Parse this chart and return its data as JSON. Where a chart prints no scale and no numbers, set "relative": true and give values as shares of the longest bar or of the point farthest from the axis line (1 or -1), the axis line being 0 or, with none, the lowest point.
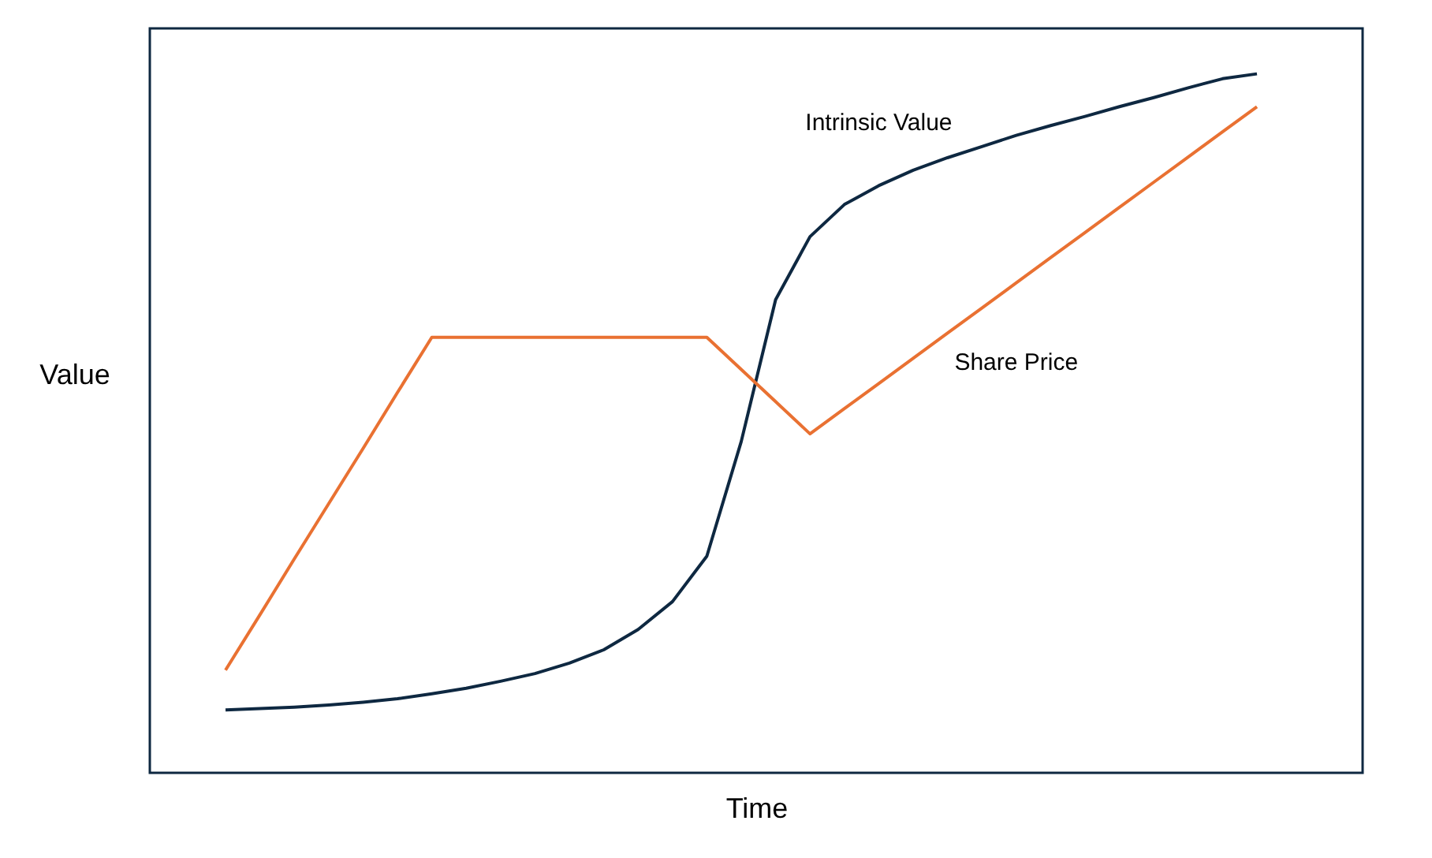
{
  "chart_data": {
    "type": "line",
    "xlabel": "Time",
    "ylabel": "Value",
    "relative": true,
    "grid": false,
    "categories": [
      null,
      null,
      null,
      null,
      null,
      null,
      null,
      null,
      null,
      null,
      null,
      null,
      null,
      null,
      null,
      null,
      null,
      null,
      null,
      null,
      null,
      null,
      null,
      null,
      null,
      null,
      null,
      null,
      null,
      null,
      null
    ],
    "series": [
      {
        "name": "Intrinsic Value",
        "color": "#0e2841",
        "values": [
          0.09,
          0.092,
          0.094,
          0.097,
          0.101,
          0.106,
          0.113,
          0.121,
          0.131,
          0.142,
          0.157,
          0.176,
          0.205,
          0.245,
          0.31,
          0.474,
          0.677,
          0.767,
          0.813,
          0.84,
          0.862,
          0.88,
          0.896,
          0.912,
          0.926,
          0.939,
          0.953,
          0.966,
          0.98,
          0.993,
          1
        ]
      },
      {
        "name": "Share Price",
        "color": "#e97132",
        "values": [
          0.147,
          0.226,
          0.306,
          0.385,
          0.464,
          0.544,
          0.623,
          0.623,
          0.623,
          0.623,
          0.623,
          0.623,
          0.623,
          0.623,
          0.623,
          0.577,
          0.531,
          0.485,
          0.521,
          0.557,
          0.593,
          0.629,
          0.665,
          0.701,
          0.737,
          0.773,
          0.809,
          0.845,
          0.881,
          0.917,
          0.953
        ]
      }
    ]
  }
}
